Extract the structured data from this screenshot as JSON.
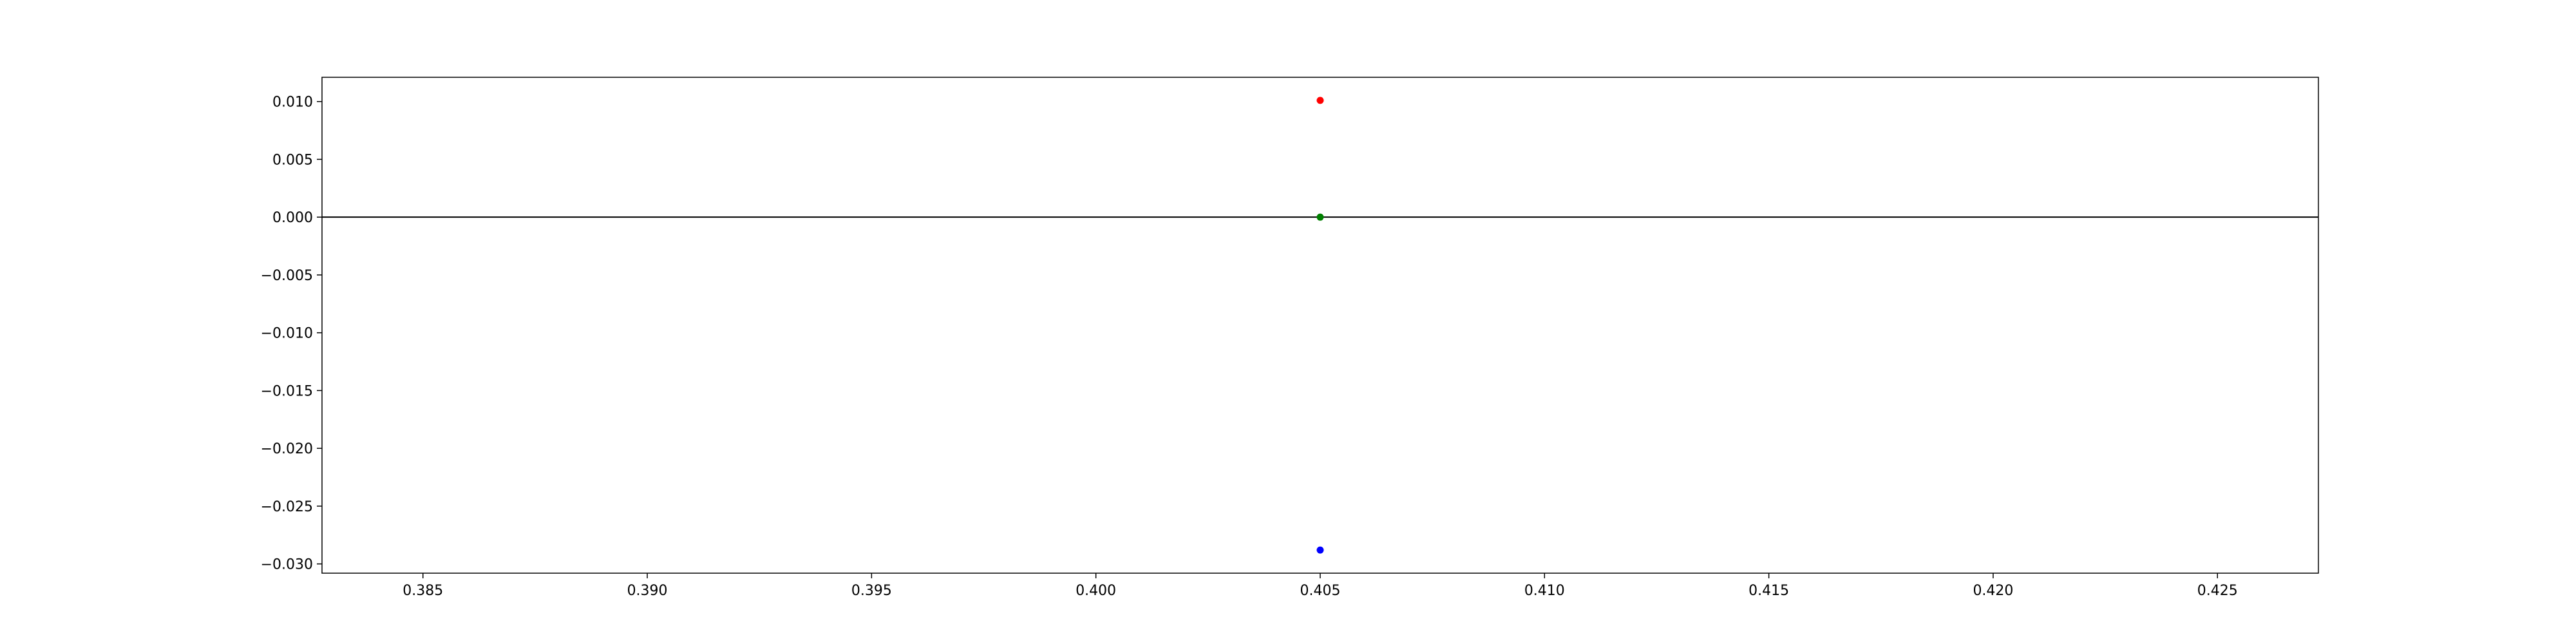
{
  "chart_data": {
    "type": "scatter",
    "title": "",
    "xlabel": "",
    "ylabel": "",
    "xlim": [
      0.38275,
      0.42725
    ],
    "ylim": [
      -0.0308,
      0.0121
    ],
    "xticks": [
      0.385,
      0.39,
      0.395,
      0.4,
      0.405,
      0.41,
      0.415,
      0.42,
      0.425
    ],
    "xtick_labels": [
      "0.385",
      "0.390",
      "0.395",
      "0.400",
      "0.405",
      "0.410",
      "0.415",
      "0.420",
      "0.425"
    ],
    "yticks": [
      0.01,
      0.005,
      0.0,
      -0.005,
      -0.01,
      -0.015,
      -0.02,
      -0.025,
      -0.03
    ],
    "ytick_labels": [
      "0.010",
      "0.005",
      "0.000",
      "−0.005",
      "−0.010",
      "−0.015",
      "−0.020",
      "−0.025",
      "−0.030"
    ],
    "grid": false,
    "legend": "none",
    "reference_lines": [
      {
        "orientation": "horizontal",
        "y": 0.0,
        "color": "#000000"
      }
    ],
    "points": [
      {
        "x": 0.405,
        "y": 0.0101,
        "color": "#ff0000"
      },
      {
        "x": 0.405,
        "y": 0.0,
        "color": "#008000"
      },
      {
        "x": 0.405,
        "y": -0.0288,
        "color": "#0000ff"
      }
    ]
  }
}
